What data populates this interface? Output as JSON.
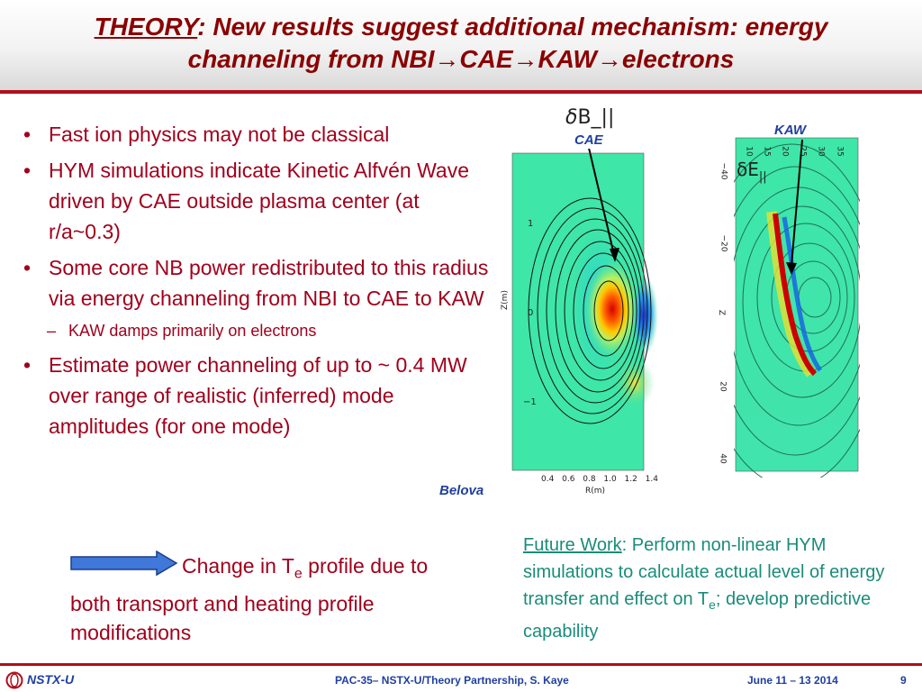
{
  "title": {
    "theory": "THEORY",
    "line1_rest": ": New results suggest additional mechanism: energy",
    "line2": "channeling from NBI→CAE→KAW→electrons"
  },
  "bullets": [
    "Fast ion physics may not be classical",
    "HYM simulations indicate Kinetic Alfvén Wave driven by CAE outside plasma center (at r/a~0.3)",
    "Some core NB power redistributed to this radius via energy channeling from NBI to CAE to KAW",
    "Estimate power channeling of up to ~ 0.4 MW over range of realistic (inferred) mode amplitudes (for one mode)"
  ],
  "subbullet": "KAW damps primarily on electrons",
  "belova": "Belova",
  "figure_left": {
    "symbol_greek": "δ",
    "symbol_rest": "B_||",
    "label": "CAE",
    "ylabel": "Z(m)",
    "xlabel": "R(m)",
    "yticks": [
      "1",
      "0",
      "−1"
    ],
    "xticks": [
      "0.4",
      "0.6",
      "0.8",
      "1.0",
      "1.2",
      "1.4"
    ]
  },
  "figure_right": {
    "label": "KAW",
    "symbol": "δE",
    "symbol_sub": "||",
    "top_ticks": [
      "10",
      "15",
      "20",
      "25",
      "30",
      "35"
    ],
    "side_ticks": [
      "−40",
      "−20",
      "Z",
      "20",
      "40"
    ]
  },
  "change": {
    "line1_a": "Change in T",
    "line1_sub": "e",
    "line1_b": " profile due to",
    "line2": "both transport and heating profile",
    "line3": "modifications"
  },
  "future": {
    "heading": "Future Work",
    "text1": ": Perform non-linear HYM simulations to calculate actual level of energy transfer and effect on T",
    "sub": "e",
    "text2": "; develop predictive capability"
  },
  "footer": {
    "logo": "NSTX-U",
    "center": "PAC-35– NSTX-U/Theory Partnership, S. Kaye",
    "date": "June 11 – 13 2014",
    "page": "9"
  },
  "colors": {
    "accent_red": "#b20d1c",
    "bullet_red": "#a0001c",
    "label_blue": "#1f3fa0",
    "teal": "#1a8c7a"
  }
}
